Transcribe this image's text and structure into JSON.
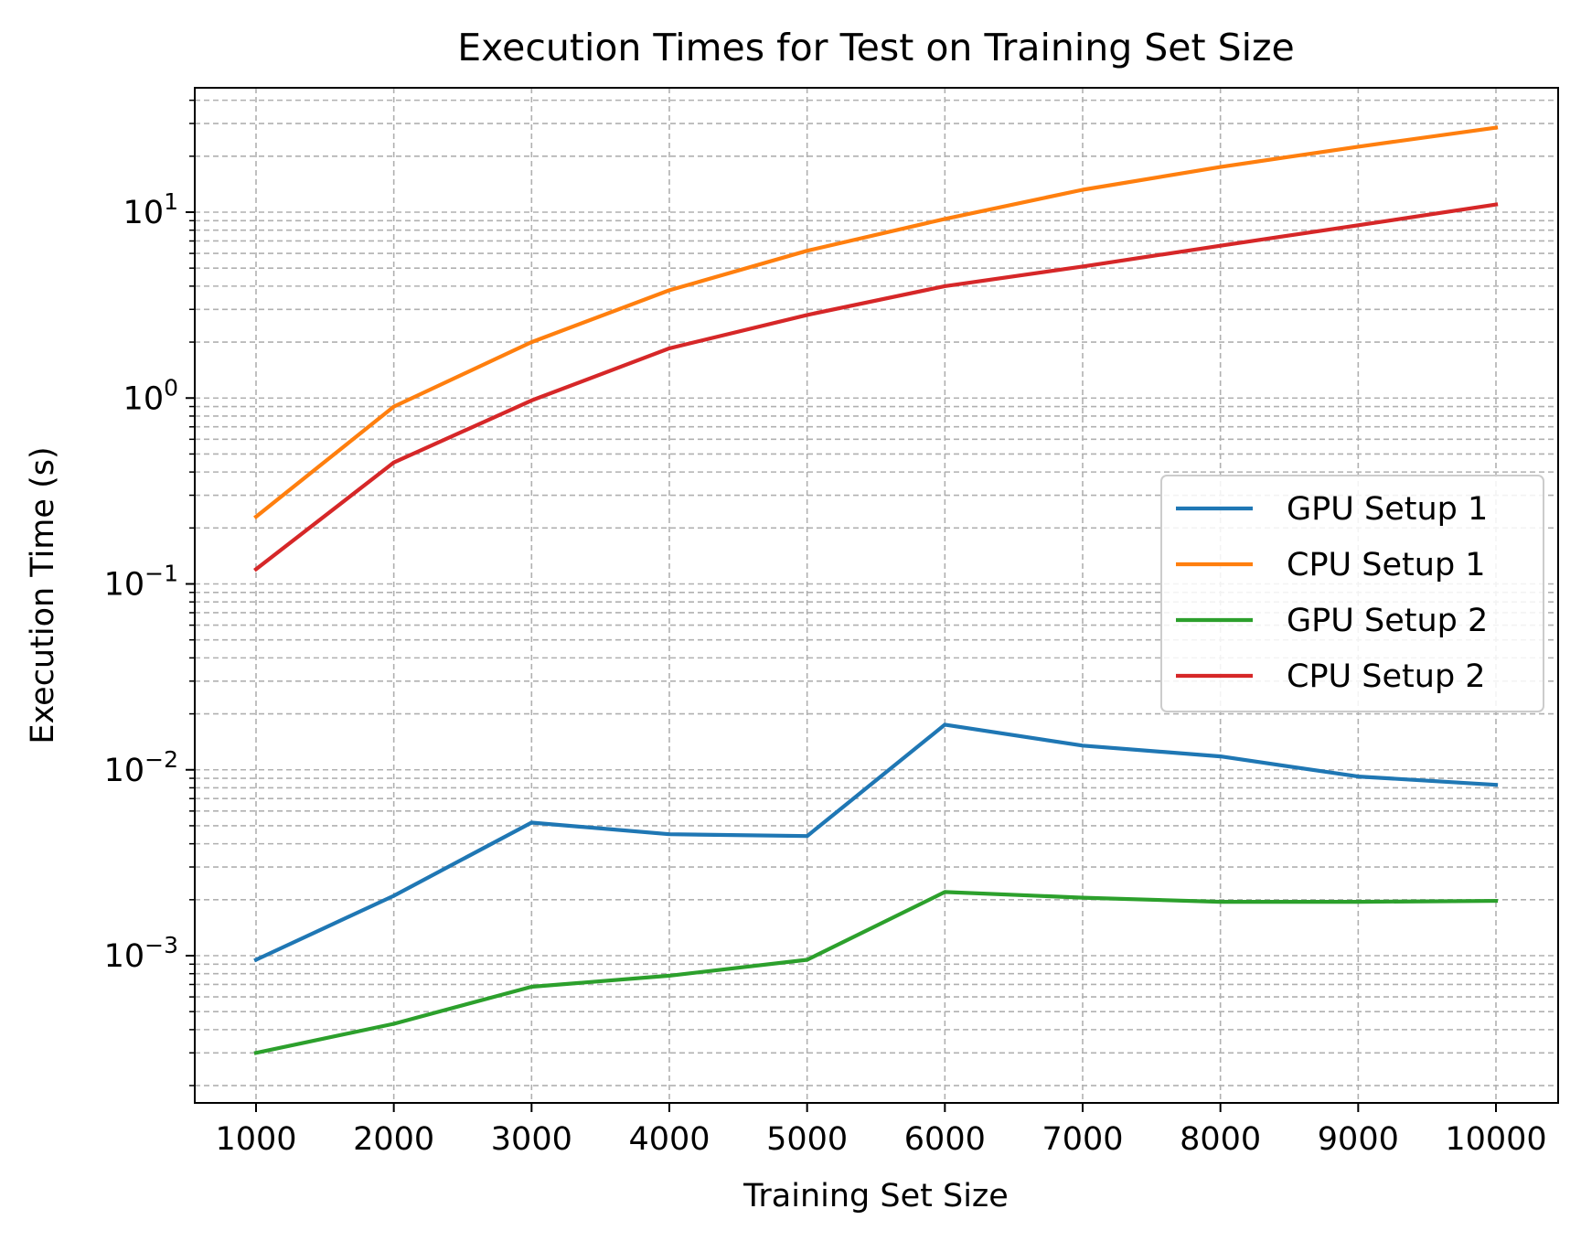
{
  "chart_data": {
    "type": "line",
    "title": "Execution Times for Test on Training Set Size",
    "xlabel": "Training Set Size",
    "ylabel": "Execution Time (s)",
    "yscale": "log",
    "ylim": [
      0.00017,
      50
    ],
    "x": [
      1000,
      2000,
      3000,
      4000,
      5000,
      6000,
      7000,
      8000,
      9000,
      10000
    ],
    "x_tick_labels": [
      "1000",
      "2000",
      "3000",
      "4000",
      "5000",
      "6000",
      "7000",
      "8000",
      "9000",
      "10000"
    ],
    "y_ticks": [
      {
        "base": "10",
        "exp": "−3",
        "value": 0.001
      },
      {
        "base": "10",
        "exp": "−2",
        "value": 0.01
      },
      {
        "base": "10",
        "exp": "−1",
        "value": 0.1
      },
      {
        "base": "10",
        "exp": "0",
        "value": 1
      },
      {
        "base": "10",
        "exp": "1",
        "value": 10
      }
    ],
    "grid": true,
    "legend_position": "center-right",
    "series": [
      {
        "name": "GPU Setup 1",
        "color": "#1f77b4",
        "values": [
          0.00095,
          0.0021,
          0.0052,
          0.0045,
          0.0044,
          0.0175,
          0.0135,
          0.0118,
          0.0092,
          0.0083
        ]
      },
      {
        "name": "CPU Setup 1",
        "color": "#ff7f0e",
        "values": [
          0.23,
          0.9,
          2.0,
          3.8,
          6.2,
          9.2,
          13.2,
          17.5,
          22.5,
          28.5
        ]
      },
      {
        "name": "GPU Setup 2",
        "color": "#2ca02c",
        "values": [
          0.0003,
          0.00043,
          0.00068,
          0.00078,
          0.00095,
          0.0022,
          0.00205,
          0.00195,
          0.00195,
          0.00197
        ]
      },
      {
        "name": "CPU Setup 2",
        "color": "#d62728",
        "values": [
          0.12,
          0.45,
          0.97,
          1.85,
          2.8,
          4.0,
          5.1,
          6.6,
          8.5,
          11.0
        ]
      }
    ]
  }
}
